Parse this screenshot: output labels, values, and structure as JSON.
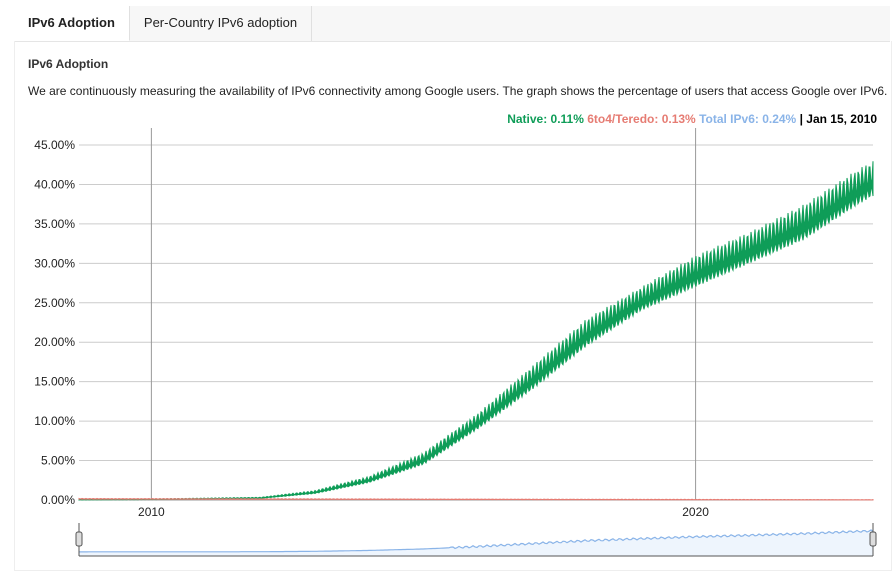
{
  "tabs": [
    {
      "label": "IPv6 Adoption",
      "active": true
    },
    {
      "label": "Per-Country IPv6 adoption",
      "active": false
    }
  ],
  "section_title": "IPv6 Adoption",
  "description": "We are continuously measuring the availability of IPv6 connectivity among Google users. The graph shows the percentage of users that access Google over IPv6.",
  "legend": {
    "native": "Native: 0.11%",
    "teredo": "6to4/Teredo: 0.13%",
    "total": "Total IPv6: 0.24%",
    "date": "| Jan 15, 2010"
  },
  "colors": {
    "native": "#0f9d58",
    "teredo": "#e67c73",
    "total": "#8ab4e8"
  },
  "chart_data": {
    "type": "area",
    "xlabel": "",
    "ylabel": "",
    "xlim": [
      2008.67,
      2023.26
    ],
    "ylim": [
      0,
      45
    ],
    "yticks": [
      "0.00%",
      "5.00%",
      "10.00%",
      "15.00%",
      "20.00%",
      "25.00%",
      "30.00%",
      "35.00%",
      "40.00%",
      "45.00%"
    ],
    "xticks": [
      "2010",
      "2020"
    ],
    "grid": true,
    "series": [
      {
        "name": "Native",
        "x": [
          2008.67,
          2010,
          2011,
          2012,
          2013,
          2014,
          2015,
          2016,
          2017,
          2018,
          2019,
          2020,
          2021,
          2022,
          2023,
          2023.26
        ],
        "low": [
          0,
          0.05,
          0.1,
          0.2,
          0.8,
          2.2,
          4.5,
          9,
          14,
          19.5,
          24,
          27,
          30,
          33,
          37.5,
          38.5
        ],
        "high": [
          0.1,
          0.15,
          0.25,
          0.35,
          1.2,
          3,
          6,
          11,
          17,
          23,
          27,
          31,
          34,
          37.5,
          42,
          43
        ]
      },
      {
        "name": "6to4/Teredo",
        "x": [
          2008.67,
          2023.26
        ],
        "low": [
          0.1,
          0
        ],
        "high": [
          0.2,
          0.05
        ]
      }
    ]
  }
}
